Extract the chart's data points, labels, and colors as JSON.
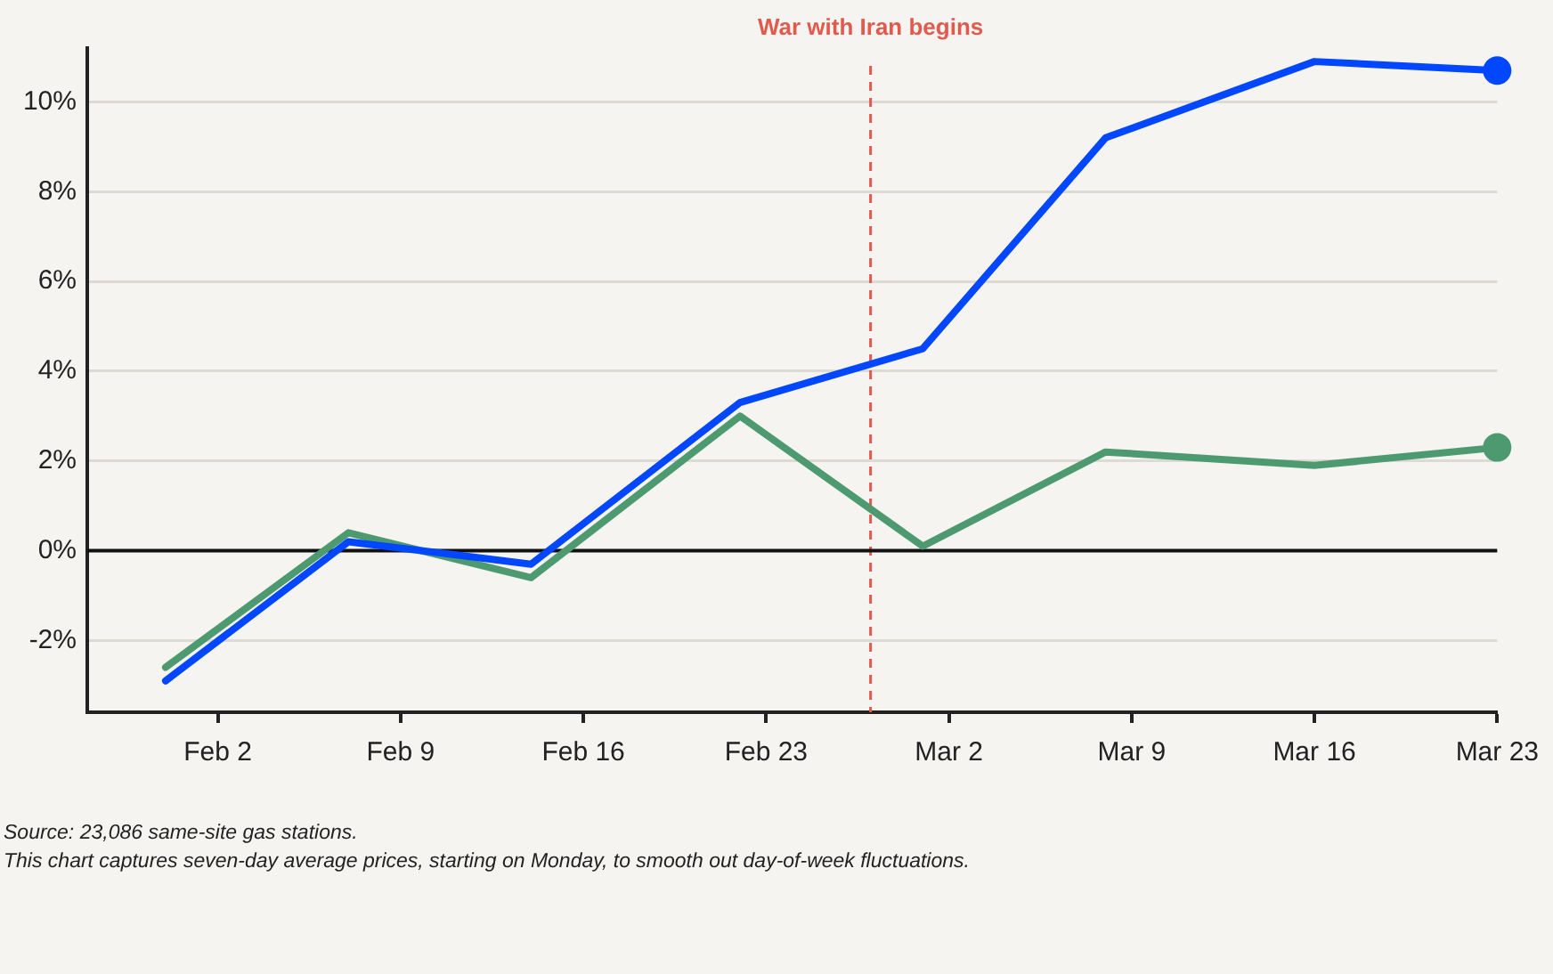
{
  "chart_data": {
    "type": "line",
    "x": [
      "--01-31",
      "--02-07",
      "--02-14",
      "--02-22",
      "--03-01",
      "--03-08",
      "--03-16",
      "--03-23"
    ],
    "series": [
      {
        "color": "#0047ff",
        "values": [
          -2.9,
          0.2,
          -0.3,
          3.3,
          4.5,
          9.2,
          10.9,
          10.7
        ]
      },
      {
        "color": "#4e9a70",
        "values": [
          -2.6,
          0.4,
          -0.6,
          3.0,
          0.1,
          2.2,
          1.9,
          2.3
        ]
      }
    ],
    "xlim": [
      "--01-28",
      "--03-23"
    ],
    "xticks": [
      {
        "value": "--02-02",
        "label": "Feb 2"
      },
      {
        "value": "--02-09",
        "label": "Feb 9"
      },
      {
        "value": "--02-16",
        "label": "Feb 16"
      },
      {
        "value": "--02-23",
        "label": "Feb 23"
      },
      {
        "value": "--03-02",
        "label": "Mar 2"
      },
      {
        "value": "--03-09",
        "label": "Mar 9"
      },
      {
        "value": "--03-16",
        "label": "Mar 16"
      },
      {
        "value": "--03-23",
        "label": "Mar 23"
      }
    ],
    "ylim": [
      -3.6,
      11.2
    ],
    "yticks": [
      {
        "value": -2,
        "label": "-2%"
      },
      {
        "value": 0,
        "label": "0%"
      },
      {
        "value": 2,
        "label": "2%"
      },
      {
        "value": 4,
        "label": "4%"
      },
      {
        "value": 6,
        "label": "6%"
      },
      {
        "value": 8,
        "label": "8%"
      },
      {
        "value": 10,
        "label": "10%"
      }
    ],
    "ref_lines": [
      {
        "axis": "x",
        "value": "--02-27",
        "label": "War with Iran begins",
        "color": "#e05a4e",
        "line_style": "dashed"
      },
      {
        "axis": "y",
        "value": 0,
        "color": "#111111",
        "line_style": "solid"
      }
    ],
    "grid": "y",
    "legend": false,
    "line_style": "solid",
    "annotations": [
      "Source: 23,086 same-site gas stations.",
      "This chart captures seven-day average prices, starting on Monday, to smooth out day-of-week fluctuations."
    ]
  }
}
